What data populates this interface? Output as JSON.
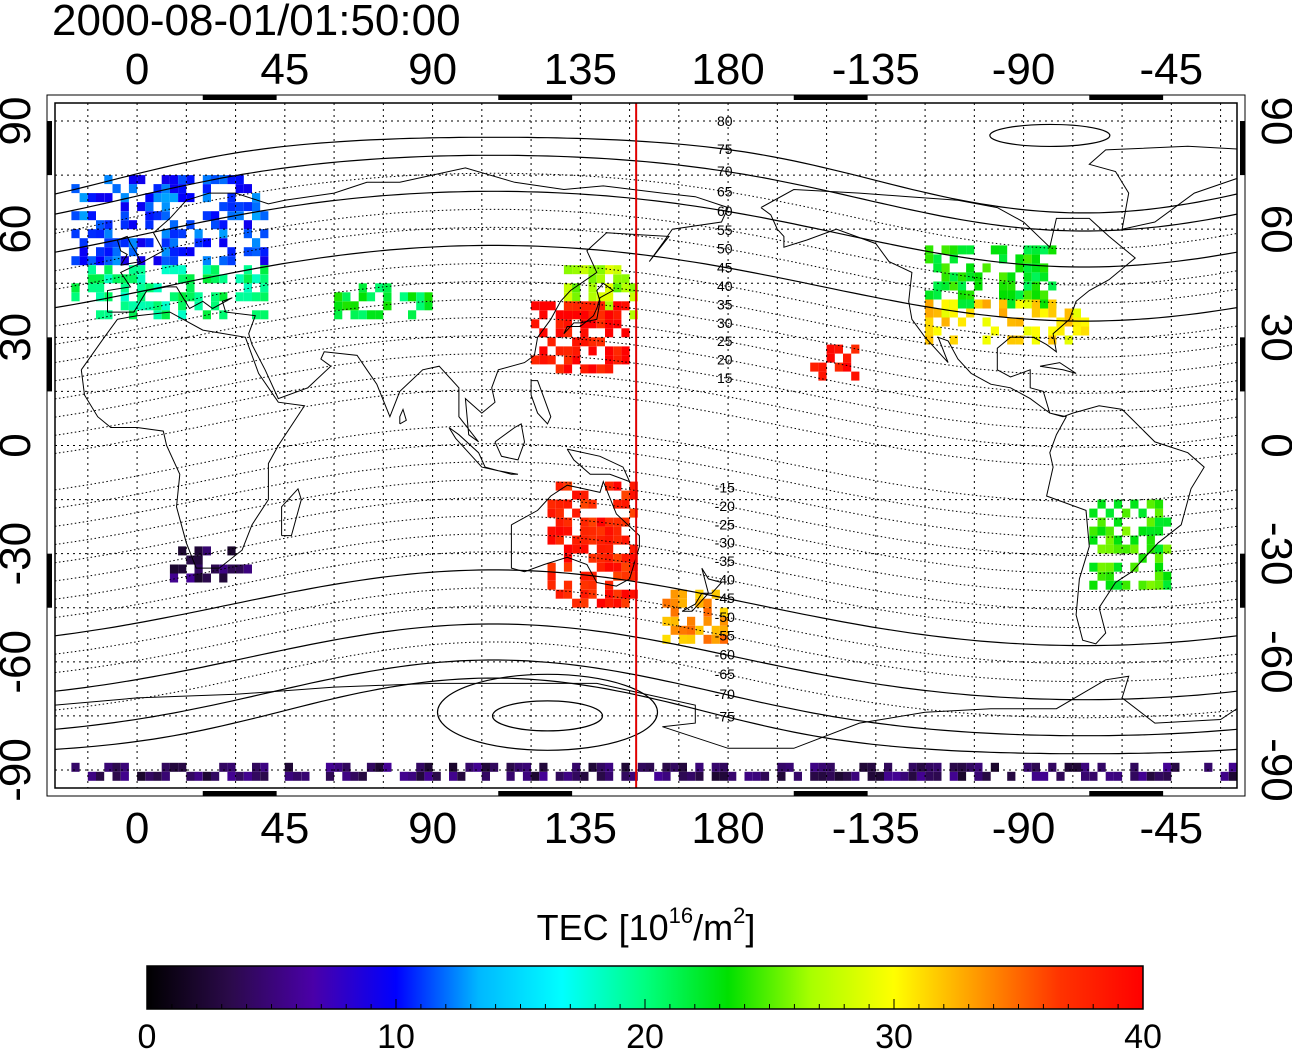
{
  "title": "2000-08-01/01:50:00",
  "map": {
    "lon_range": [
      -25,
      335
    ],
    "lat_range": [
      -95,
      95
    ],
    "lon_ticks_top": [
      "0",
      "45",
      "90",
      "135",
      "180",
      "-135",
      "-90",
      "-45"
    ],
    "lon_ticks_bottom": [
      "0",
      "45",
      "90",
      "135",
      "180",
      "-135",
      "-90",
      "-45"
    ],
    "lat_ticks_left": [
      "90",
      "60",
      "30",
      "0",
      "-30",
      "-60",
      "-90"
    ],
    "lat_ticks_right": [
      "90",
      "60",
      "30",
      "0",
      "-30",
      "-60",
      "-90"
    ],
    "lon_tick_values": [
      0,
      45,
      90,
      135,
      180,
      225,
      270,
      315
    ],
    "lat_tick_values": [
      90,
      60,
      30,
      0,
      -30,
      -60,
      -90
    ],
    "grid": "dotted",
    "red_line_longitude": 152,
    "magnetic_latitude_labels_north": [
      "80",
      "75",
      "70",
      "65",
      "60",
      "55",
      "50",
      "45",
      "40",
      "35",
      "30",
      "25",
      "20",
      "15"
    ],
    "magnetic_latitude_labels_south": [
      "-15",
      "-20",
      "-25",
      "-30",
      "-35",
      "-40",
      "-45",
      "-50",
      "-55",
      "-60",
      "-65",
      "-70",
      "-75"
    ],
    "colors": {
      "red_line": "#e00000",
      "frame": "#000000"
    }
  },
  "colorbar": {
    "label_main": "TEC  [10",
    "label_sup1": "16",
    "label_mid": "/m",
    "label_sup2": "2",
    "label_end": "]",
    "min": 0,
    "max": 40,
    "ticks": [
      "0",
      "10",
      "20",
      "30",
      "40"
    ],
    "tick_values": [
      0,
      10,
      20,
      30,
      40
    ],
    "stops": [
      "#000000",
      "#2b0a4a",
      "#4a00a8",
      "#0000ff",
      "#00b8ff",
      "#00ffff",
      "#00ff80",
      "#00e000",
      "#a8ff00",
      "#ffff00",
      "#ff9900",
      "#ff3300",
      "#ff0000"
    ]
  },
  "tec_regions": [
    {
      "lon": [
        -20,
        40
      ],
      "lat": [
        50,
        75
      ],
      "tec": 11
    },
    {
      "lon": [
        -20,
        40
      ],
      "lat": [
        35,
        50
      ],
      "tec": 20
    },
    {
      "lon": [
        60,
        90
      ],
      "lat": [
        35,
        45
      ],
      "tec": 22
    },
    {
      "lon": [
        130,
        152
      ],
      "lat": [
        35,
        50
      ],
      "tec": 27
    },
    {
      "lon": [
        120,
        150
      ],
      "lat": [
        20,
        38
      ],
      "tec": 39
    },
    {
      "lon": [
        240,
        280
      ],
      "lat": [
        38,
        55
      ],
      "tec": 23
    },
    {
      "lon": [
        240,
        290
      ],
      "lat": [
        28,
        40
      ],
      "tec": 31
    },
    {
      "lon": [
        205,
        220
      ],
      "lat": [
        18,
        27
      ],
      "tec": 39
    },
    {
      "lon": [
        125,
        152
      ],
      "lat": [
        -45,
        -10
      ],
      "tec": 38
    },
    {
      "lon": [
        160,
        178
      ],
      "lat": [
        -55,
        -40
      ],
      "tec": 33
    },
    {
      "lon": [
        290,
        315
      ],
      "lat": [
        -40,
        -15
      ],
      "tec": 24
    },
    {
      "lon": [
        10,
        35
      ],
      "lat": [
        -38,
        -28
      ],
      "tec": 4
    },
    {
      "lon": [
        -20,
        335
      ],
      "lat": [
        -93,
        -88
      ],
      "tec": 4
    }
  ]
}
